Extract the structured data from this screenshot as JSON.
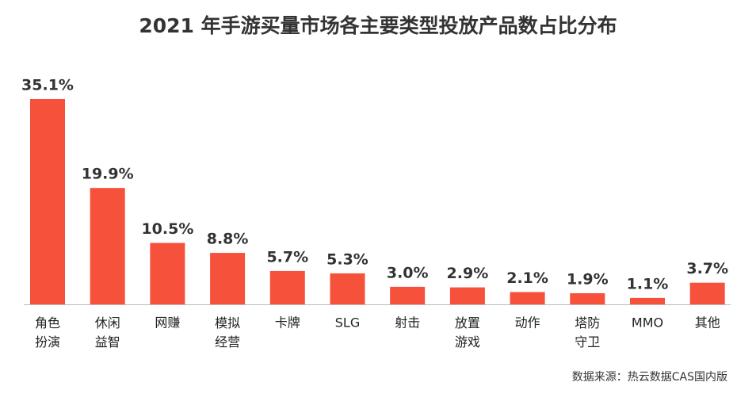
{
  "chart_data": {
    "type": "bar",
    "title": "2021 年手游买量市场各主要类型投放产品数占比分布",
    "categories": [
      "角色扮演",
      "休闲益智",
      "网赚",
      "模拟经营",
      "卡牌",
      "SLG",
      "射击",
      "放置游戏",
      "动作",
      "塔防守卫",
      "MMO",
      "其他"
    ],
    "values": [
      35.1,
      19.9,
      10.5,
      8.8,
      5.7,
      5.3,
      3.0,
      2.9,
      2.1,
      1.9,
      1.1,
      3.7
    ],
    "value_labels": [
      "35.1%",
      "19.9%",
      "10.5%",
      "8.8%",
      "5.7%",
      "5.3%",
      "3.0%",
      "2.9%",
      "2.1%",
      "1.9%",
      "1.1%",
      "3.7%"
    ],
    "color": "#f5513b",
    "source": "数据来源：热云数据CAS国内版"
  }
}
